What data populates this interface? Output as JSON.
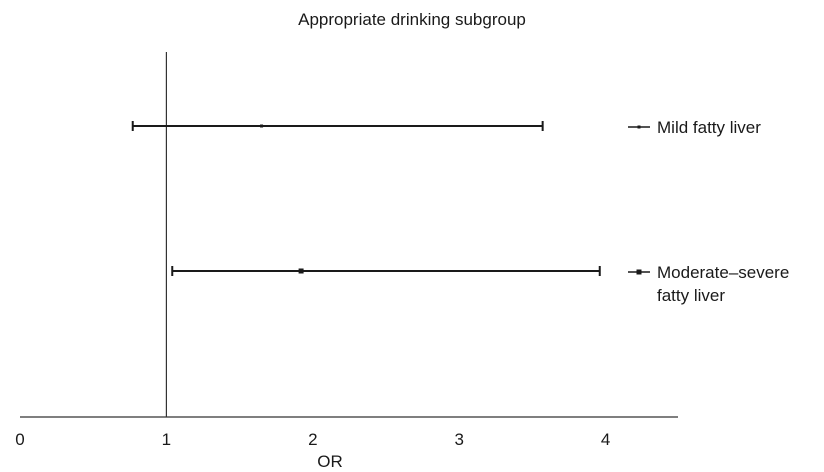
{
  "chart_data": {
    "type": "forest",
    "title": "Appropriate drinking subgroup",
    "xlabel": "OR",
    "xlim": [
      0,
      4.5
    ],
    "x_ticks": [
      "0",
      "1",
      "2",
      "3",
      "4"
    ],
    "x_tick_values": [
      0,
      1,
      2,
      3,
      4
    ],
    "reference_line": 1,
    "series": [
      {
        "name": "Mild fatty liver",
        "label_lines": [
          "Mild fatty liver"
        ],
        "or": 1.65,
        "lower": 0.77,
        "upper": 3.57
      },
      {
        "name": "Moderate–severe fatty liver",
        "label_lines": [
          "Moderate–severe",
          "fatty liver"
        ],
        "or": 1.92,
        "lower": 1.04,
        "upper": 3.96
      }
    ],
    "legend_placement": "right",
    "grid": false
  }
}
